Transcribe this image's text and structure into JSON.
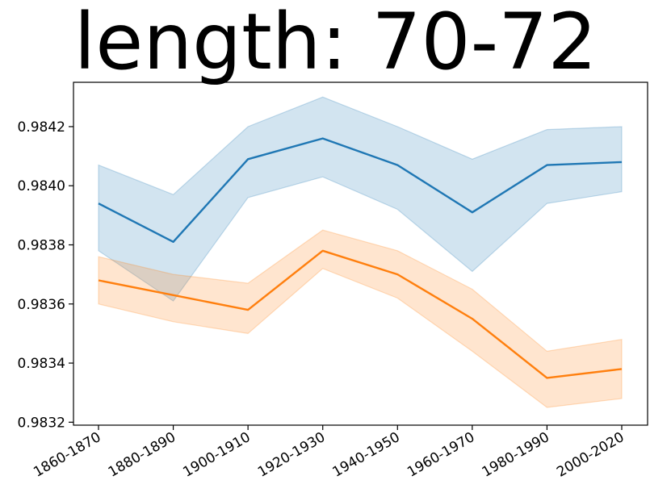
{
  "chart_data": {
    "type": "line",
    "title": "length: 70-72",
    "xlabel": "",
    "ylabel": "",
    "categories": [
      "1860-1870",
      "1880-1890",
      "1900-1910",
      "1920-1930",
      "1940-1950",
      "1960-1970",
      "1980-1990",
      "2000-2020"
    ],
    "ylim": [
      0.98319,
      0.98435
    ],
    "yticks": [
      0.9832,
      0.9834,
      0.9836,
      0.9838,
      0.984,
      0.9842
    ],
    "ytick_labels": [
      "0.9832",
      "0.9834",
      "0.9836",
      "0.9838",
      "0.9840",
      "0.9842"
    ],
    "grid": false,
    "series": [
      {
        "color": "#1f77b4",
        "values": [
          0.98394,
          0.98381,
          0.98409,
          0.98416,
          0.98407,
          0.98391,
          0.98407,
          0.98408
        ],
        "lower": [
          0.98378,
          0.98361,
          0.98396,
          0.98403,
          0.98392,
          0.98371,
          0.98394,
          0.98398
        ],
        "upper": [
          0.98407,
          0.98397,
          0.9842,
          0.9843,
          0.9842,
          0.98409,
          0.98419,
          0.9842
        ]
      },
      {
        "color": "#ff7f0e",
        "values": [
          0.98368,
          0.98363,
          0.98358,
          0.98378,
          0.9837,
          0.98355,
          0.98335,
          0.98338
        ],
        "lower": [
          0.9836,
          0.98354,
          0.9835,
          0.98372,
          0.98362,
          0.98344,
          0.98325,
          0.98328
        ],
        "upper": [
          0.98376,
          0.9837,
          0.98367,
          0.98385,
          0.98378,
          0.98365,
          0.98344,
          0.98348
        ]
      }
    ]
  }
}
